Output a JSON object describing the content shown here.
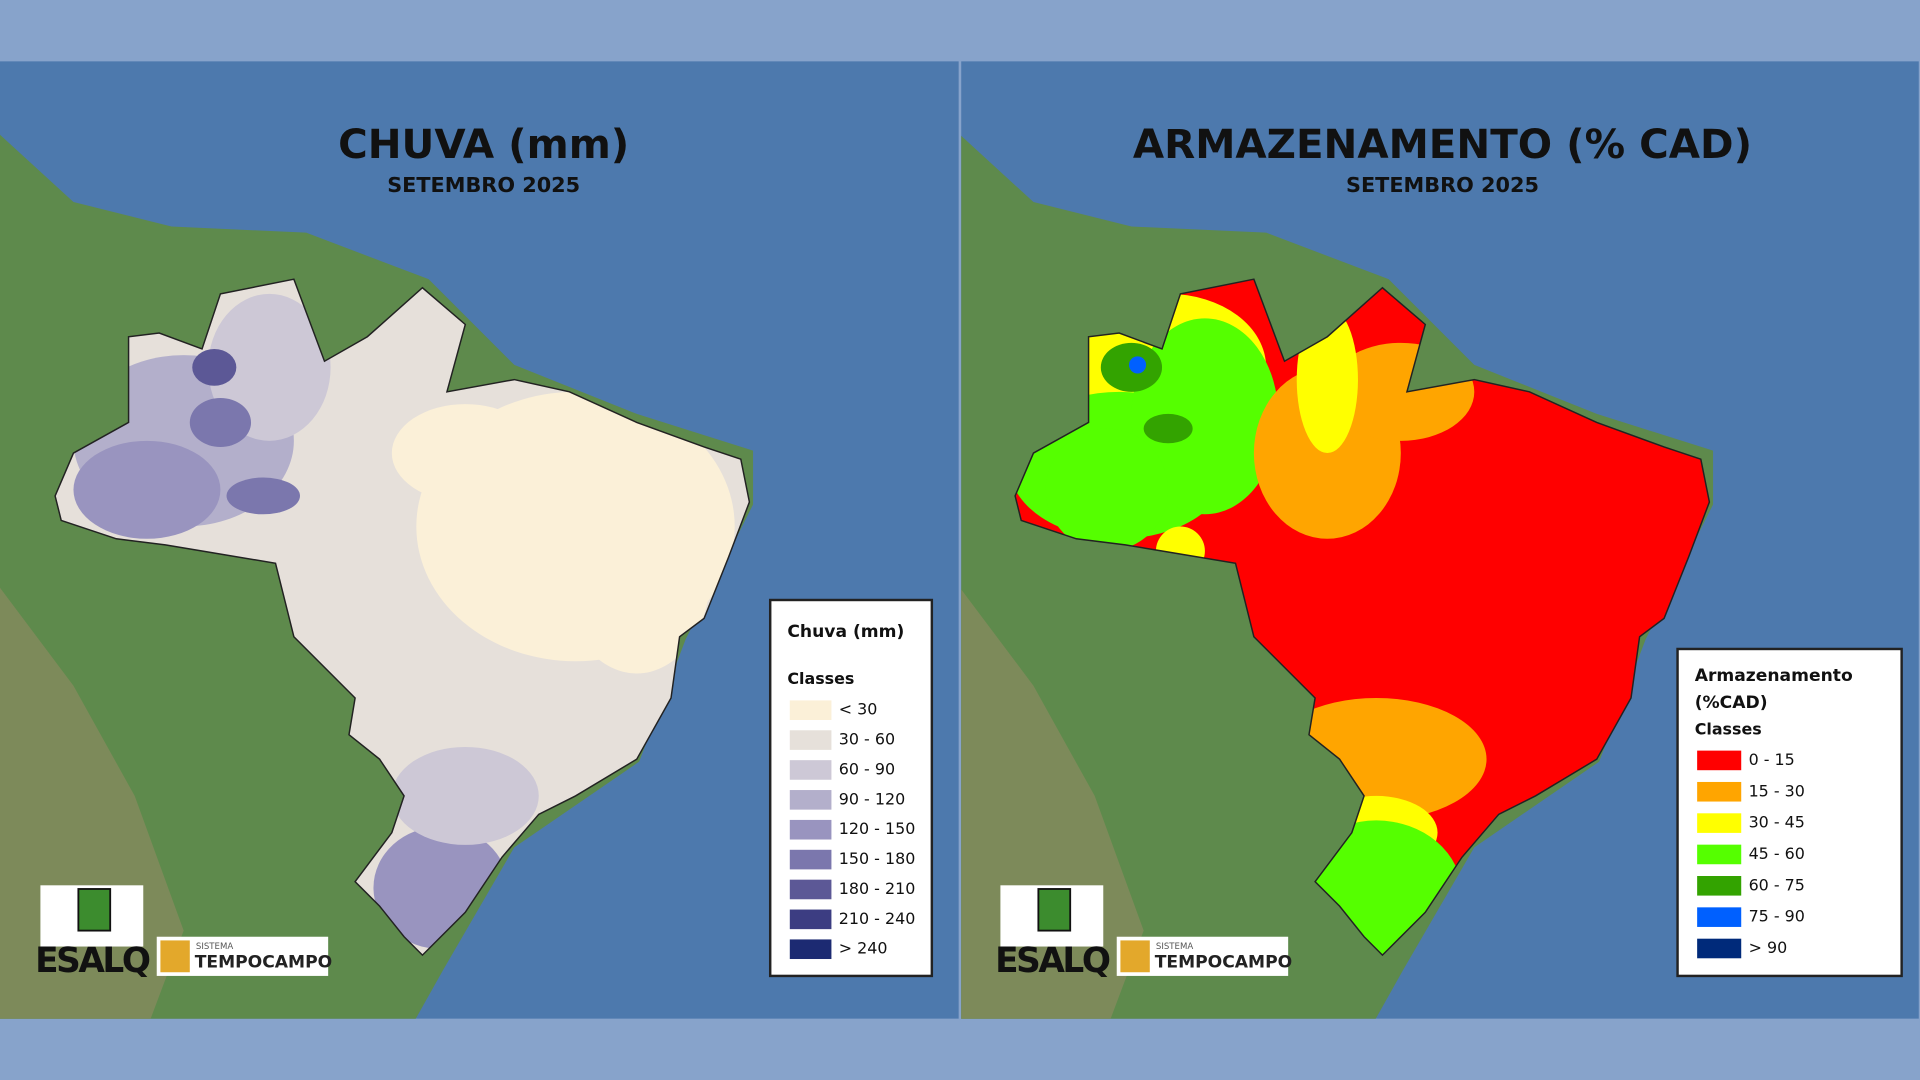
{
  "panels": [
    {
      "title": "CHUVA (mm)",
      "subtitle": "SETEMBRO 2025",
      "legend": {
        "title": "Chuva (mm)",
        "subtitle": "Classes",
        "items": [
          {
            "label": "< 30",
            "color": "#fbf0d8"
          },
          {
            "label": "30 - 60",
            "color": "#e6e0da"
          },
          {
            "label": "60 - 90",
            "color": "#cdc8d6"
          },
          {
            "label": "90 - 120",
            "color": "#b3afcb"
          },
          {
            "label": "120 - 150",
            "color": "#9994bf"
          },
          {
            "label": "150 - 180",
            "color": "#7b77ad"
          },
          {
            "label": "180 - 210",
            "color": "#5c5896"
          },
          {
            "label": "210 - 240",
            "color": "#3c3d82"
          },
          {
            "label": "> 240",
            "color": "#1c2a72"
          }
        ]
      }
    },
    {
      "title": "ARMAZENAMENTO (% CAD)",
      "subtitle": "SETEMBRO 2025",
      "legend": {
        "title": "Armazenamento (%CAD)",
        "subtitle": "Classes",
        "items": [
          {
            "label": "0 - 15",
            "color": "#ff0000"
          },
          {
            "label": "15 - 30",
            "color": "#ffa500"
          },
          {
            "label": "30 - 45",
            "color": "#ffff00"
          },
          {
            "label": "45 - 60",
            "color": "#55ff00"
          },
          {
            "label": "60 - 75",
            "color": "#33a300"
          },
          {
            "label": "75 - 90",
            "color": "#0060ff"
          },
          {
            "label": "> 90",
            "color": "#002a7a"
          }
        ]
      }
    }
  ],
  "logos": {
    "institution": "ESALQ",
    "system_caption": "SISTEMA",
    "system_name": "TEMPOCAMPO"
  }
}
